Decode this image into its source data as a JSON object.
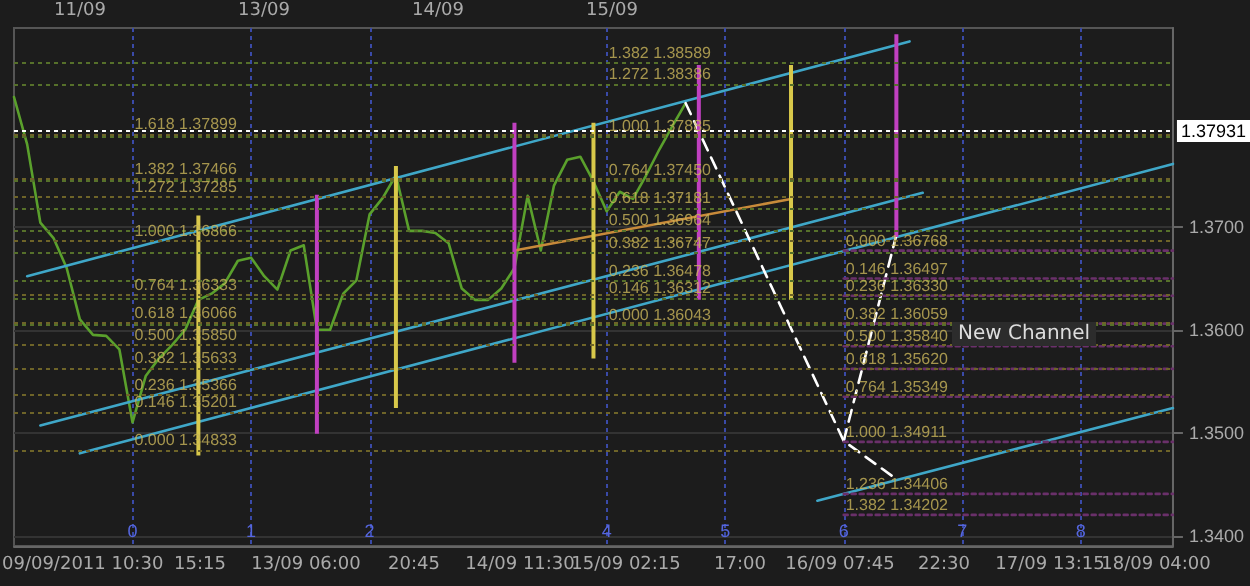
{
  "chart_data": {
    "type": "line",
    "categories": [
      null,
      null,
      null,
      null,
      null,
      null,
      null,
      null,
      null,
      "0",
      null,
      null,
      null,
      null,
      null,
      null,
      null,
      null,
      "1",
      null,
      null,
      null,
      null,
      null,
      null,
      null,
      null,
      "2",
      null,
      null,
      null,
      null,
      null,
      null,
      null,
      null,
      null,
      null,
      null,
      null,
      null,
      null,
      null,
      null,
      null,
      "4",
      null,
      null,
      null,
      null,
      null,
      null,
      null,
      null,
      "5",
      null,
      null,
      null,
      null,
      null,
      null,
      null,
      null,
      "6",
      null,
      null,
      null,
      null,
      null,
      null,
      null,
      null,
      "7",
      null,
      null,
      null,
      null,
      null,
      null,
      null,
      null,
      "8",
      null,
      null,
      null,
      null,
      null,
      null,
      null
    ],
    "ylim": [
      1.339,
      1.3893
    ],
    "yticks": [
      {
        "value": 1.34,
        "label": "1.3400"
      },
      {
        "value": 1.35,
        "label": "1.3500"
      },
      {
        "value": 1.36,
        "label": "1.3600"
      },
      {
        "value": 1.37,
        "label": "1.3700"
      }
    ],
    "grid": true,
    "marker": "none",
    "series": [
      {
        "color": "#5aa02c",
        "values": [
          1.3826,
          1.378,
          1.3704,
          1.3689,
          1.366,
          1.361,
          1.3595,
          1.3594,
          1.3581,
          1.351,
          1.3555,
          1.3572,
          1.3585,
          1.36,
          1.3629,
          1.3635,
          1.3645,
          1.3667,
          1.367,
          1.3652,
          1.3639,
          1.3677,
          1.3682,
          1.36,
          1.36,
          1.3635,
          1.3648,
          1.3712,
          1.3728,
          1.375,
          1.3696,
          1.3696,
          1.3694,
          1.3684,
          1.364,
          1.3629,
          1.3629,
          1.364,
          1.366,
          1.373,
          1.3677,
          1.374,
          1.3765,
          1.3768,
          1.3744,
          1.3715,
          1.3734,
          1.3727,
          1.375,
          1.3775,
          1.3798,
          1.382,
          null,
          null,
          null,
          null,
          null,
          null,
          null,
          null,
          null,
          null,
          null,
          null,
          null,
          null,
          null,
          null,
          null,
          null,
          null,
          null,
          null,
          null,
          null,
          null,
          null,
          null,
          null,
          null,
          null,
          null,
          null,
          null,
          null,
          null,
          null,
          null,
          null
        ]
      },
      {
        "color": "#3fa7c8",
        "values": [
          null,
          1.3652,
          null,
          null,
          null,
          null,
          null,
          null,
          null,
          null,
          null,
          null,
          null,
          null,
          null,
          null,
          null,
          null,
          null,
          null,
          null,
          null,
          null,
          null,
          null,
          null,
          null,
          null,
          null,
          null,
          null,
          null,
          null,
          null,
          null,
          null,
          null,
          null,
          null,
          null,
          null,
          null,
          null,
          null,
          null,
          null,
          null,
          null,
          null,
          null,
          null,
          null,
          null,
          null,
          null,
          null,
          null,
          null,
          null,
          null,
          null,
          null,
          null,
          null,
          null,
          null,
          null,
          null,
          1.388,
          null,
          null,
          null,
          null,
          null,
          null,
          null,
          null,
          null,
          null,
          null,
          null,
          null,
          null,
          null,
          null,
          null,
          null,
          null,
          null
        ]
      },
      {
        "color": "#3fa7c8",
        "values": [
          null,
          null,
          1.3507,
          null,
          null,
          null,
          null,
          null,
          null,
          null,
          null,
          null,
          null,
          null,
          null,
          null,
          null,
          null,
          null,
          null,
          null,
          null,
          null,
          null,
          null,
          null,
          null,
          null,
          null,
          null,
          null,
          null,
          null,
          null,
          null,
          null,
          null,
          null,
          null,
          null,
          null,
          null,
          null,
          null,
          null,
          null,
          null,
          null,
          null,
          null,
          null,
          null,
          null,
          null,
          null,
          null,
          null,
          null,
          null,
          null,
          null,
          null,
          null,
          null,
          null,
          null,
          null,
          null,
          null,
          1.3733,
          null,
          null,
          null,
          null,
          null,
          null,
          null,
          null,
          null,
          null,
          null,
          null,
          null,
          null,
          null,
          null,
          null,
          null,
          null
        ]
      },
      {
        "color": "#3fa7c8",
        "values": [
          null,
          null,
          null,
          null,
          null,
          1.348,
          null,
          null,
          null,
          null,
          null,
          null,
          null,
          null,
          null,
          null,
          null,
          null,
          null,
          null,
          null,
          null,
          null,
          null,
          null,
          null,
          null,
          null,
          null,
          null,
          null,
          null,
          null,
          null,
          null,
          null,
          null,
          null,
          null,
          null,
          null,
          null,
          null,
          null,
          null,
          null,
          null,
          null,
          null,
          null,
          null,
          null,
          null,
          null,
          null,
          null,
          null,
          null,
          null,
          null,
          null,
          null,
          null,
          null,
          null,
          null,
          null,
          null,
          null,
          null,
          null,
          null,
          null,
          null,
          null,
          null,
          null,
          null,
          null,
          null,
          null,
          null,
          null,
          null,
          null,
          null,
          null,
          null,
          1.3761
        ]
      },
      {
        "color": "#3fa7c8",
        "values": [
          null,
          null,
          null,
          null,
          null,
          null,
          null,
          null,
          null,
          null,
          null,
          null,
          null,
          null,
          null,
          null,
          null,
          null,
          null,
          null,
          null,
          null,
          null,
          null,
          null,
          null,
          null,
          null,
          null,
          null,
          null,
          null,
          null,
          null,
          null,
          null,
          null,
          null,
          null,
          null,
          null,
          null,
          null,
          null,
          null,
          null,
          null,
          null,
          null,
          null,
          null,
          null,
          null,
          null,
          null,
          null,
          null,
          null,
          null,
          null,
          null,
          1.3434,
          null,
          null,
          null,
          null,
          null,
          null,
          null,
          null,
          null,
          null,
          null,
          null,
          null,
          null,
          null,
          null,
          null,
          null,
          null,
          null,
          null,
          null,
          null,
          null,
          null,
          null,
          1.3524
        ]
      },
      {
        "color": "#c88a3a",
        "values": [
          null,
          null,
          null,
          null,
          null,
          null,
          null,
          null,
          null,
          null,
          null,
          null,
          null,
          null,
          null,
          null,
          null,
          null,
          null,
          null,
          null,
          null,
          null,
          null,
          null,
          null,
          null,
          null,
          null,
          null,
          null,
          null,
          null,
          null,
          null,
          null,
          null,
          null,
          1.3677,
          null,
          null,
          null,
          null,
          null,
          null,
          null,
          null,
          null,
          null,
          null,
          null,
          null,
          null,
          null,
          null,
          null,
          null,
          null,
          null,
          1.3727,
          null,
          null,
          null,
          null,
          null,
          null,
          null,
          null,
          null,
          null,
          null,
          null,
          null,
          null,
          null,
          null,
          null,
          null,
          null,
          null,
          null,
          null,
          null,
          null,
          null,
          null,
          null,
          null,
          null
        ]
      },
      {
        "color": "#ffffff",
        "line_style": "dashed",
        "values": [
          null,
          null,
          null,
          null,
          null,
          null,
          null,
          null,
          null,
          null,
          null,
          null,
          null,
          null,
          null,
          null,
          null,
          null,
          null,
          null,
          null,
          null,
          null,
          null,
          null,
          null,
          null,
          null,
          null,
          null,
          null,
          null,
          null,
          null,
          null,
          null,
          null,
          null,
          null,
          null,
          null,
          null,
          null,
          null,
          null,
          null,
          null,
          null,
          null,
          null,
          null,
          1.382,
          null,
          null,
          null,
          null,
          null,
          null,
          null,
          null,
          null,
          null,
          null,
          1.3492,
          null,
          null,
          null,
          1.3455,
          null,
          null,
          null,
          null,
          null,
          null,
          null,
          null,
          null,
          null,
          null,
          null,
          null,
          null,
          null,
          null,
          null,
          null,
          null,
          null,
          null
        ]
      },
      {
        "color": "#ffffff",
        "line_style": "dashed",
        "values": [
          null,
          null,
          null,
          null,
          null,
          null,
          null,
          null,
          null,
          null,
          null,
          null,
          null,
          null,
          null,
          null,
          null,
          null,
          null,
          null,
          null,
          null,
          null,
          null,
          null,
          null,
          null,
          null,
          null,
          null,
          null,
          null,
          null,
          null,
          null,
          null,
          null,
          null,
          null,
          null,
          null,
          null,
          null,
          null,
          null,
          null,
          null,
          null,
          null,
          null,
          null,
          null,
          null,
          null,
          null,
          null,
          null,
          null,
          null,
          null,
          null,
          null,
          null,
          1.3492,
          null,
          null,
          null,
          1.3692,
          null,
          null,
          null,
          null,
          null,
          null,
          null,
          null,
          null,
          null,
          null,
          null,
          null,
          null,
          null,
          null,
          null,
          null,
          null,
          null,
          null
        ]
      },
      {
        "type": "bar",
        "base": [
          null,
          null,
          null,
          null,
          null,
          null,
          null,
          null,
          null,
          null,
          null,
          null,
          null,
          null,
          1.3478,
          null,
          null,
          null,
          null,
          null,
          null,
          null,
          null,
          1.3499,
          null,
          null,
          null,
          null,
          null,
          1.3524,
          null,
          null,
          null,
          null,
          null,
          null,
          null,
          null,
          1.3568,
          null,
          null,
          null,
          null,
          null,
          1.3572,
          null,
          null,
          null,
          null,
          null,
          null,
          null,
          1.3629,
          null,
          null,
          null,
          null,
          null,
          null,
          1.3629,
          null,
          null,
          null,
          null,
          null,
          null,
          null,
          1.369,
          null,
          null,
          null,
          null,
          null,
          null,
          null,
          null,
          null,
          null,
          null,
          null,
          null,
          null,
          null,
          null,
          null,
          null,
          null,
          null,
          null
        ],
        "values": [
          null,
          null,
          null,
          null,
          null,
          null,
          null,
          null,
          null,
          null,
          null,
          null,
          null,
          null,
          0.0233,
          null,
          null,
          null,
          null,
          null,
          null,
          null,
          null,
          0.0232,
          null,
          null,
          null,
          null,
          null,
          0.0235,
          null,
          null,
          null,
          null,
          null,
          null,
          null,
          null,
          0.0233,
          null,
          null,
          null,
          null,
          null,
          0.0229,
          null,
          null,
          null,
          null,
          null,
          null,
          null,
          0.0228,
          null,
          null,
          null,
          null,
          null,
          null,
          0.0228,
          null,
          null,
          null,
          null,
          null,
          null,
          null,
          0.0197,
          null,
          null,
          null,
          null,
          null,
          null,
          null,
          null,
          null,
          null,
          null,
          null,
          null,
          null,
          null,
          null,
          null,
          null,
          null,
          null,
          null
        ],
        "colors": [
          null,
          null,
          null,
          null,
          null,
          null,
          null,
          null,
          null,
          null,
          null,
          null,
          null,
          null,
          "#d8c84a",
          null,
          null,
          null,
          null,
          null,
          null,
          null,
          null,
          "#c040c0",
          null,
          null,
          null,
          null,
          null,
          "#d8c84a",
          null,
          null,
          null,
          null,
          null,
          null,
          null,
          null,
          "#c040c0",
          null,
          null,
          null,
          null,
          null,
          "#d8c84a",
          null,
          null,
          null,
          null,
          null,
          null,
          null,
          "#c040c0",
          null,
          null,
          null,
          null,
          null,
          null,
          "#d8c84a",
          null,
          null,
          null,
          null,
          null,
          null,
          null,
          "#c040c0",
          null,
          null,
          null,
          null,
          null,
          null,
          null,
          null,
          null,
          null,
          null,
          null,
          null,
          null,
          null,
          null,
          null,
          null,
          null,
          null,
          null
        ]
      },
      {
        "color": "#6a306a",
        "line_style": "dotted",
        "values": [
          null,
          null,
          null,
          null,
          null,
          null,
          null,
          null,
          null,
          null,
          null,
          null,
          null,
          null,
          null,
          null,
          null,
          null,
          null,
          null,
          null,
          null,
          null,
          null,
          null,
          null,
          null,
          null,
          null,
          null,
          null,
          null,
          null,
          null,
          null,
          null,
          null,
          null,
          null,
          null,
          null,
          null,
          null,
          null,
          null,
          null,
          null,
          null,
          null,
          null,
          null,
          null,
          null,
          null,
          null,
          null,
          null,
          null,
          null,
          null,
          null,
          null,
          null,
          1.36768,
          null,
          null,
          null,
          null,
          null,
          null,
          null,
          null,
          null,
          null,
          null,
          null,
          null,
          null,
          null,
          null,
          null,
          null,
          null,
          null,
          null,
          null,
          null,
          null,
          1.36768
        ]
      },
      {
        "color": "#6a306a",
        "line_style": "dotted",
        "values": [
          null,
          null,
          null,
          null,
          null,
          null,
          null,
          null,
          null,
          null,
          null,
          null,
          null,
          null,
          null,
          null,
          null,
          null,
          null,
          null,
          null,
          null,
          null,
          null,
          null,
          null,
          null,
          null,
          null,
          null,
          null,
          null,
          null,
          null,
          null,
          null,
          null,
          null,
          null,
          null,
          null,
          null,
          null,
          null,
          null,
          null,
          null,
          null,
          null,
          null,
          null,
          null,
          null,
          null,
          null,
          null,
          null,
          null,
          null,
          null,
          null,
          null,
          null,
          1.36497,
          null,
          null,
          null,
          null,
          null,
          null,
          null,
          null,
          null,
          null,
          null,
          null,
          null,
          null,
          null,
          null,
          null,
          null,
          null,
          null,
          null,
          null,
          null,
          null,
          1.36497
        ]
      },
      {
        "color": "#6a306a",
        "line_style": "dotted",
        "values": [
          null,
          null,
          null,
          null,
          null,
          null,
          null,
          null,
          null,
          null,
          null,
          null,
          null,
          null,
          null,
          null,
          null,
          null,
          null,
          null,
          null,
          null,
          null,
          null,
          null,
          null,
          null,
          null,
          null,
          null,
          null,
          null,
          null,
          null,
          null,
          null,
          null,
          null,
          null,
          null,
          null,
          null,
          null,
          null,
          null,
          null,
          null,
          null,
          null,
          null,
          null,
          null,
          null,
          null,
          null,
          null,
          null,
          null,
          null,
          null,
          null,
          null,
          null,
          1.3633,
          null,
          null,
          null,
          null,
          null,
          null,
          null,
          null,
          null,
          null,
          null,
          null,
          null,
          null,
          null,
          null,
          null,
          null,
          null,
          null,
          null,
          null,
          null,
          null,
          1.3633
        ]
      },
      {
        "color": "#6a306a",
        "line_style": "dotted",
        "values": [
          null,
          null,
          null,
          null,
          null,
          null,
          null,
          null,
          null,
          null,
          null,
          null,
          null,
          null,
          null,
          null,
          null,
          null,
          null,
          null,
          null,
          null,
          null,
          null,
          null,
          null,
          null,
          null,
          null,
          null,
          null,
          null,
          null,
          null,
          null,
          null,
          null,
          null,
          null,
          null,
          null,
          null,
          null,
          null,
          null,
          null,
          null,
          null,
          null,
          null,
          null,
          null,
          null,
          null,
          null,
          null,
          null,
          null,
          null,
          null,
          null,
          null,
          null,
          1.36059,
          null,
          null,
          null,
          null,
          null,
          null,
          null,
          null,
          null,
          null,
          null,
          null,
          null,
          null,
          null,
          null,
          null,
          null,
          null,
          null,
          null,
          null,
          null,
          null,
          1.36059
        ]
      },
      {
        "color": "#6a306a",
        "line_style": "dotted",
        "values": [
          null,
          null,
          null,
          null,
          null,
          null,
          null,
          null,
          null,
          null,
          null,
          null,
          null,
          null,
          null,
          null,
          null,
          null,
          null,
          null,
          null,
          null,
          null,
          null,
          null,
          null,
          null,
          null,
          null,
          null,
          null,
          null,
          null,
          null,
          null,
          null,
          null,
          null,
          null,
          null,
          null,
          null,
          null,
          null,
          null,
          null,
          null,
          null,
          null,
          null,
          null,
          null,
          null,
          null,
          null,
          null,
          null,
          null,
          null,
          null,
          null,
          null,
          null,
          1.3584,
          null,
          null,
          null,
          null,
          null,
          null,
          null,
          null,
          null,
          null,
          null,
          null,
          null,
          null,
          null,
          null,
          null,
          null,
          null,
          null,
          null,
          null,
          null,
          null,
          1.3584
        ]
      },
      {
        "color": "#6a306a",
        "line_style": "dotted",
        "values": [
          null,
          null,
          null,
          null,
          null,
          null,
          null,
          null,
          null,
          null,
          null,
          null,
          null,
          null,
          null,
          null,
          null,
          null,
          null,
          null,
          null,
          null,
          null,
          null,
          null,
          null,
          null,
          null,
          null,
          null,
          null,
          null,
          null,
          null,
          null,
          null,
          null,
          null,
          null,
          null,
          null,
          null,
          null,
          null,
          null,
          null,
          null,
          null,
          null,
          null,
          null,
          null,
          null,
          null,
          null,
          null,
          null,
          null,
          null,
          null,
          null,
          null,
          null,
          1.3562,
          null,
          null,
          null,
          null,
          null,
          null,
          null,
          null,
          null,
          null,
          null,
          null,
          null,
          null,
          null,
          null,
          null,
          null,
          null,
          null,
          null,
          null,
          null,
          null,
          1.3562
        ]
      },
      {
        "color": "#6a306a",
        "line_style": "dotted",
        "values": [
          null,
          null,
          null,
          null,
          null,
          null,
          null,
          null,
          null,
          null,
          null,
          null,
          null,
          null,
          null,
          null,
          null,
          null,
          null,
          null,
          null,
          null,
          null,
          null,
          null,
          null,
          null,
          null,
          null,
          null,
          null,
          null,
          null,
          null,
          null,
          null,
          null,
          null,
          null,
          null,
          null,
          null,
          null,
          null,
          null,
          null,
          null,
          null,
          null,
          null,
          null,
          null,
          null,
          null,
          null,
          null,
          null,
          null,
          null,
          null,
          null,
          null,
          null,
          1.35349,
          null,
          null,
          null,
          null,
          null,
          null,
          null,
          null,
          null,
          null,
          null,
          null,
          null,
          null,
          null,
          null,
          null,
          null,
          null,
          null,
          null,
          null,
          null,
          null,
          1.35349
        ]
      },
      {
        "color": "#6a306a",
        "line_style": "dotted",
        "values": [
          null,
          null,
          null,
          null,
          null,
          null,
          null,
          null,
          null,
          null,
          null,
          null,
          null,
          null,
          null,
          null,
          null,
          null,
          null,
          null,
          null,
          null,
          null,
          null,
          null,
          null,
          null,
          null,
          null,
          null,
          null,
          null,
          null,
          null,
          null,
          null,
          null,
          null,
          null,
          null,
          null,
          null,
          null,
          null,
          null,
          null,
          null,
          null,
          null,
          null,
          null,
          null,
          null,
          null,
          null,
          null,
          null,
          null,
          null,
          null,
          null,
          null,
          null,
          1.34911,
          null,
          null,
          null,
          null,
          null,
          null,
          null,
          null,
          null,
          null,
          null,
          null,
          null,
          null,
          null,
          null,
          null,
          null,
          null,
          null,
          null,
          null,
          null,
          null,
          1.34911
        ]
      },
      {
        "color": "#6a306a",
        "line_style": "dotted",
        "values": [
          null,
          null,
          null,
          null,
          null,
          null,
          null,
          null,
          null,
          null,
          null,
          null,
          null,
          null,
          null,
          null,
          null,
          null,
          null,
          null,
          null,
          null,
          null,
          null,
          null,
          null,
          null,
          null,
          null,
          null,
          null,
          null,
          null,
          null,
          null,
          null,
          null,
          null,
          null,
          null,
          null,
          null,
          null,
          null,
          null,
          null,
          null,
          null,
          null,
          null,
          null,
          null,
          null,
          null,
          null,
          null,
          null,
          null,
          null,
          null,
          null,
          null,
          null,
          1.34406,
          null,
          null,
          null,
          null,
          null,
          null,
          null,
          null,
          null,
          null,
          null,
          null,
          null,
          null,
          null,
          null,
          null,
          null,
          null,
          null,
          null,
          null,
          null,
          null,
          1.34406
        ]
      },
      {
        "color": "#6a306a",
        "line_style": "dotted",
        "values": [
          null,
          null,
          null,
          null,
          null,
          null,
          null,
          null,
          null,
          null,
          null,
          null,
          null,
          null,
          null,
          null,
          null,
          null,
          null,
          null,
          null,
          null,
          null,
          null,
          null,
          null,
          null,
          null,
          null,
          null,
          null,
          null,
          null,
          null,
          null,
          null,
          null,
          null,
          null,
          null,
          null,
          null,
          null,
          null,
          null,
          null,
          null,
          null,
          null,
          null,
          null,
          null,
          null,
          null,
          null,
          null,
          null,
          null,
          null,
          null,
          null,
          null,
          null,
          1.34202,
          null,
          null,
          null,
          null,
          null,
          null,
          null,
          null,
          null,
          null,
          null,
          null,
          null,
          null,
          null,
          null,
          null,
          null,
          null,
          null,
          null,
          null,
          null,
          null,
          1.34202
        ]
      }
    ],
    "ref_lines": [
      {
        "axis": "y",
        "value": 1.37931,
        "label": "1.37931",
        "color": "#ffffff",
        "line_style": "dotted"
      },
      {
        "axis": "y",
        "value": 1.37899,
        "color": "#6e6428",
        "line_style": "dotted"
      },
      {
        "axis": "y",
        "value": 1.37466,
        "color": "#6e6428",
        "line_style": "dotted"
      },
      {
        "axis": "y",
        "value": 1.37285,
        "color": "#6e6428",
        "line_style": "dotted"
      },
      {
        "axis": "y",
        "value": 1.36866,
        "color": "#6e6428",
        "line_style": "dotted"
      },
      {
        "axis": "y",
        "value": 1.36333,
        "color": "#6e6428",
        "line_style": "dotted"
      },
      {
        "axis": "y",
        "value": 1.36066,
        "color": "#6e6428",
        "line_style": "dotted"
      },
      {
        "axis": "y",
        "value": 1.3585,
        "color": "#6e6428",
        "line_style": "dotted"
      },
      {
        "axis": "y",
        "value": 1.35633,
        "color": "#6e6428",
        "line_style": "dotted"
      },
      {
        "axis": "y",
        "value": 1.35366,
        "color": "#6e6428",
        "line_style": "dotted"
      },
      {
        "axis": "y",
        "value": 1.35201,
        "color": "#6e6428",
        "line_style": "dotted"
      },
      {
        "axis": "y",
        "value": 1.34833,
        "color": "#6e6428",
        "line_style": "dotted"
      },
      {
        "axis": "y",
        "value": 1.38589,
        "color": "#56702a",
        "line_style": "dotted"
      },
      {
        "axis": "y",
        "value": 1.38386,
        "color": "#56702a",
        "line_style": "dotted"
      },
      {
        "axis": "y",
        "value": 1.37885,
        "color": "#56702a",
        "line_style": "dotted"
      },
      {
        "axis": "y",
        "value": 1.3745,
        "color": "#56702a",
        "line_style": "dotted"
      },
      {
        "axis": "y",
        "value": 1.37181,
        "color": "#56702a",
        "line_style": "dotted"
      },
      {
        "axis": "y",
        "value": 1.36964,
        "color": "#56702a",
        "line_style": "dotted"
      },
      {
        "axis": "y",
        "value": 1.36747,
        "color": "#56702a",
        "line_style": "dotted"
      },
      {
        "axis": "y",
        "value": 1.36478,
        "color": "#56702a",
        "line_style": "dotted"
      },
      {
        "axis": "y",
        "value": 1.36312,
        "color": "#56702a",
        "line_style": "dotted"
      },
      {
        "axis": "y",
        "value": 1.36043,
        "color": "#56702a",
        "line_style": "dotted"
      }
    ],
    "annotations": [
      {
        "text": "1.618 1.37899",
        "x": "0",
        "y": 1.37899
      },
      {
        "text": "1.382 1.37466",
        "x": "0",
        "y": 1.37466
      },
      {
        "text": "1.272 1.37285",
        "x": "0",
        "y": 1.37285
      },
      {
        "text": "1.000 1.36866",
        "x": "0",
        "y": 1.36866
      },
      {
        "text": "0.764 1.36333",
        "x": "0",
        "y": 1.36333
      },
      {
        "text": "0.618 1.36066",
        "x": "0",
        "y": 1.36066
      },
      {
        "text": "0.500 1.35850",
        "x": "0",
        "y": 1.3585
      },
      {
        "text": "0.382 1.35633",
        "x": "0",
        "y": 1.35633
      },
      {
        "text": "0.236 1.35366",
        "x": "0",
        "y": 1.35366
      },
      {
        "text": "0.146 1.35201",
        "x": "0",
        "y": 1.35201
      },
      {
        "text": "0.000 1.34833",
        "x": "0",
        "y": 1.34833
      },
      {
        "text": "1.382 1.38589",
        "x": "4",
        "y": 1.38589
      },
      {
        "text": "1.272 1.38386",
        "x": "4",
        "y": 1.38386
      },
      {
        "text": "1.000 1.37885",
        "x": "4",
        "y": 1.37885
      },
      {
        "text": "0.764 1.37450",
        "x": "4",
        "y": 1.3745
      },
      {
        "text": "0.618 1.37181",
        "x": "4",
        "y": 1.37181
      },
      {
        "text": "0.500 1.36964",
        "x": "4",
        "y": 1.36964
      },
      {
        "text": "0.382 1.36747",
        "x": "4",
        "y": 1.36747
      },
      {
        "text": "0.236 1.36478",
        "x": "4",
        "y": 1.36478
      },
      {
        "text": "0.146 1.36312",
        "x": "4",
        "y": 1.36312
      },
      {
        "text": "0.000 1.36043",
        "x": "4",
        "y": 1.36043
      },
      {
        "text": "0.000 1.36768",
        "x": "6",
        "y": 1.36768
      },
      {
        "text": "0.146 1.36497",
        "x": "6",
        "y": 1.36497
      },
      {
        "text": "0.236 1.36330",
        "x": "6",
        "y": 1.3633
      },
      {
        "text": "0.382 1.36059",
        "x": "6",
        "y": 1.36059
      },
      {
        "text": "0.500 1.35840",
        "x": "6",
        "y": 1.3584
      },
      {
        "text": "0.618 1.35620",
        "x": "6",
        "y": 1.3562
      },
      {
        "text": "0.764 1.35349",
        "x": "6",
        "y": 1.35349
      },
      {
        "text": "1.000 1.34911",
        "x": "6",
        "y": 1.34911
      },
      {
        "text": "1.236 1.34406",
        "x": "6",
        "y": 1.34406
      },
      {
        "text": "1.382 1.34202",
        "x": "6",
        "y": 1.34202
      },
      "11/09",
      "13/09",
      "14/09",
      "15/09",
      "09/09/2011 10:30",
      "15:15",
      "13/09 06:00",
      "20:45",
      "14/09 11:30",
      "15/09 02:15",
      "17:00",
      "16/09 07:45",
      "22:30",
      "17/09 13:15",
      "18/09 04:00",
      "New Channel"
    ]
  }
}
